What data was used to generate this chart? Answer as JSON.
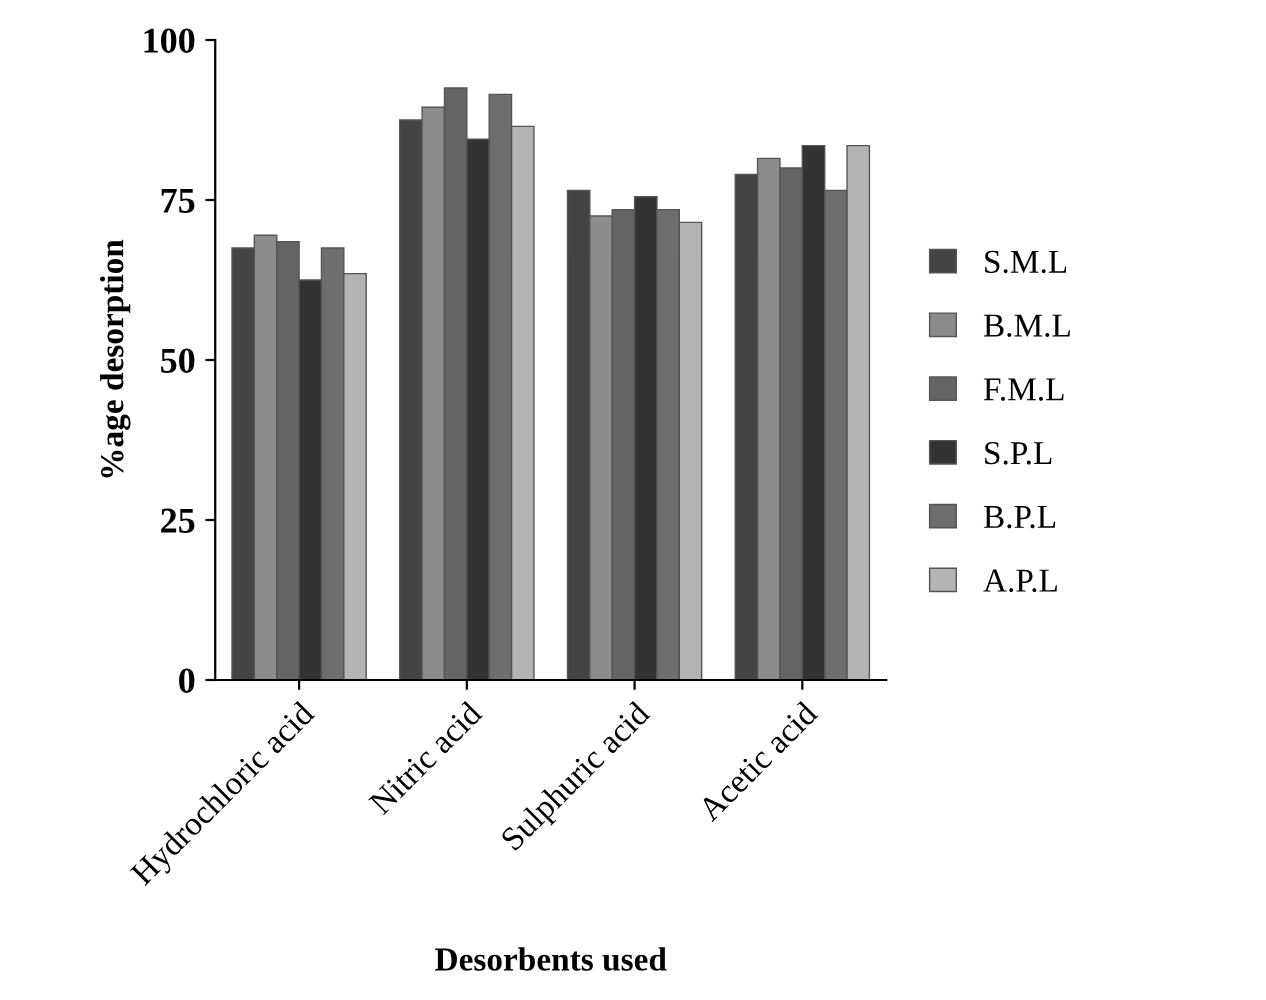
{
  "chart_data": {
    "type": "bar",
    "xlabel": "Desorbents used",
    "ylabel": "%age desorption",
    "categories": [
      "Hydrochloric acid",
      "Nitric acid",
      "Sulphuric acid",
      "Acetic acid"
    ],
    "series": [
      {
        "name": "S.M.L",
        "color": "#444444",
        "values": [
          67.5,
          87.5,
          76.5,
          79
        ]
      },
      {
        "name": "B.M.L",
        "color": "#8c8c8c",
        "values": [
          69.5,
          89.5,
          72.5,
          81.5
        ]
      },
      {
        "name": "F.M.L",
        "color": "#646464",
        "values": [
          68.5,
          92.5,
          73.5,
          80
        ]
      },
      {
        "name": "S.P.L",
        "color": "#333333",
        "values": [
          62.5,
          84.5,
          75.5,
          83.5
        ]
      },
      {
        "name": "B.P.L",
        "color": "#6e6e6e",
        "values": [
          67.5,
          91.5,
          73.5,
          76.5
        ]
      },
      {
        "name": "A.P.L",
        "color": "#b4b4b4",
        "values": [
          63.5,
          86.5,
          71.5,
          83.5
        ]
      }
    ],
    "ylim": [
      0,
      100
    ],
    "yticks": [
      0,
      25,
      50,
      75,
      100
    ],
    "grid": false,
    "legend": "right"
  }
}
